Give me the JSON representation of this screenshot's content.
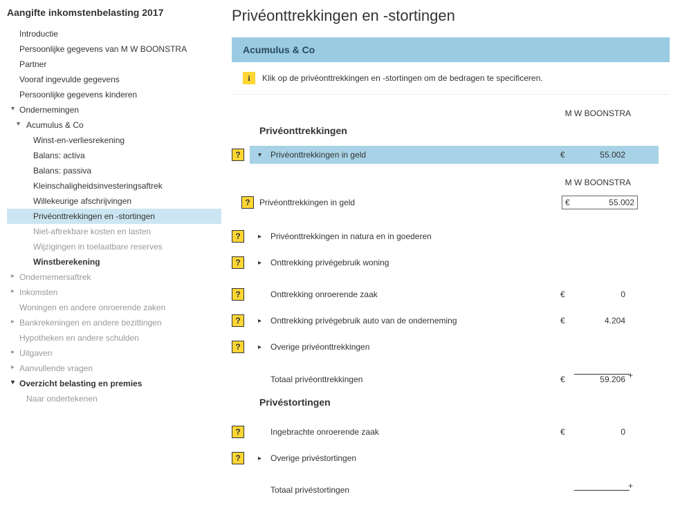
{
  "sidebar": {
    "title": "Aangifte inkomstenbelasting 2017",
    "items": [
      {
        "label": "Introductie",
        "indent": 0
      },
      {
        "label": "Persoonlijke gegevens van M W BOONSTRA",
        "indent": 0
      },
      {
        "label": "Partner",
        "indent": 0
      },
      {
        "label": "Vooraf ingevulde gegevens",
        "indent": 0
      },
      {
        "label": "Persoonlijke gegevens kinderen",
        "indent": 0
      },
      {
        "label": "Ondernemingen",
        "indent": 0,
        "state": "expanded"
      },
      {
        "label": "Acumulus & Co",
        "indent": 1,
        "state": "expanded"
      },
      {
        "label": "Winst-en-verliesrekening",
        "indent": 2
      },
      {
        "label": "Balans: activa",
        "indent": 2
      },
      {
        "label": "Balans: passiva",
        "indent": 2
      },
      {
        "label": "Kleinschaligheidsinvesteringsaftrek",
        "indent": 2
      },
      {
        "label": "Willekeurige afschrijvingen",
        "indent": 2
      },
      {
        "label": "Privéonttrekkingen en -stortingen",
        "indent": 2,
        "cls": "active"
      },
      {
        "label": "Niet-aftrekbare kosten en lasten",
        "indent": 2,
        "cls": "dim"
      },
      {
        "label": "Wijzigingen in toelaatbare reserves",
        "indent": 2,
        "cls": "dim"
      },
      {
        "label": "Winstberekening",
        "indent": 2,
        "cls": "bold"
      },
      {
        "label": "Ondernemersaftrek",
        "indent": 0,
        "state": "collapsed"
      },
      {
        "label": "Inkomsten",
        "indent": 0,
        "state": "collapsed"
      },
      {
        "label": "Woningen en andere onroerende zaken",
        "indent": 0,
        "cls": "dim"
      },
      {
        "label": "Bankrekeningen en andere bezittingen",
        "indent": 0,
        "state": "collapsed"
      },
      {
        "label": "Hypotheken en andere schulden",
        "indent": 0,
        "cls": "dim"
      },
      {
        "label": "Uitgaven",
        "indent": 0,
        "state": "collapsed"
      },
      {
        "label": "Aanvullende vragen",
        "indent": 0,
        "state": "collapsed"
      },
      {
        "label": "Overzicht belasting en premies",
        "indent": 0,
        "state": "expanded",
        "cls": "bold"
      },
      {
        "label": "Naar ondertekenen",
        "indent": 1,
        "cls": "dim"
      }
    ]
  },
  "page": {
    "title": "Privéonttrekkingen en -stortingen",
    "company": "Acumulus & Co",
    "info_badge": "i",
    "info_text": "Klik op de privéonttrekkingen en -stortingen om de bedragen te specificeren.",
    "person": "M W BOONSTRA",
    "help_symbol": "?",
    "currency": "€",
    "plus": "+",
    "section1": {
      "heading": "Privéonttrekkingen",
      "rows": [
        {
          "caret": "▾",
          "label": "Privéonttrekkingen in geld",
          "value": "55.002",
          "highlighted": true,
          "help": true
        },
        {
          "caret": "▸",
          "label": "Privéonttrekkingen in natura en in goederen",
          "value": "",
          "help": true
        },
        {
          "caret": "▸",
          "label": "Onttrekking privégebruik woning",
          "value": "",
          "help": true
        },
        {
          "caret": "",
          "label": "Onttrekking onroerende zaak",
          "value": "0",
          "help": true
        },
        {
          "caret": "▸",
          "label": "Onttrekking privégebruik auto van de onderneming",
          "value": "4.204",
          "help": true
        },
        {
          "caret": "▸",
          "label": "Overige privéonttrekkingen",
          "value": "",
          "help": true
        }
      ],
      "subrow": {
        "label": "Privéonttrekkingen in geld",
        "person": "M W BOONSTRA",
        "value": "55.002"
      },
      "total": {
        "label": "Totaal privéonttrekkingen",
        "value": "59.206"
      }
    },
    "section2": {
      "heading": "Privéstortingen",
      "rows": [
        {
          "caret": "",
          "label": "Ingebrachte onroerende zaak",
          "value": "0",
          "help": true
        },
        {
          "caret": "▸",
          "label": "Overige privéstortingen",
          "value": "",
          "help": true
        }
      ],
      "total": {
        "label": "Totaal privéstortingen",
        "value": ""
      }
    }
  }
}
